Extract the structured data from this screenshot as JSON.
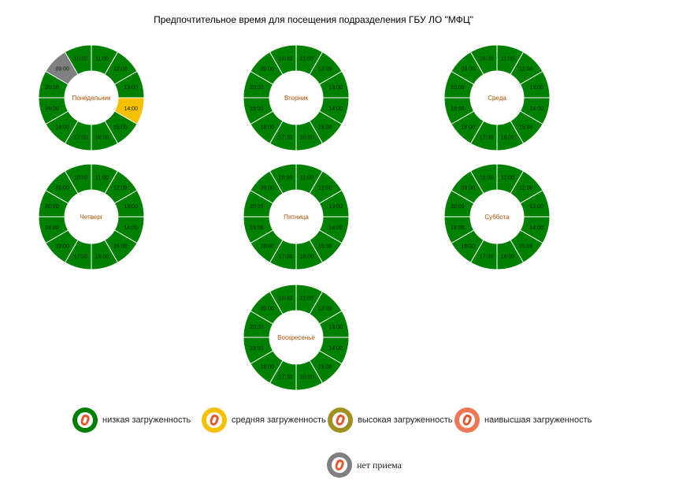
{
  "title": "Предпочтительное время для посещения подразделения ГБУ ЛО \"МФЦ\"",
  "colors": {
    "low": "#008000",
    "medium": "#f5c000",
    "high": "#a09020",
    "highest": "#ee7755",
    "none": "#808080",
    "center_label": "#b05000",
    "slot_text": "#002200"
  },
  "days": [
    {
      "name": "Понедельник",
      "slots": [
        {
          "time": "11:00",
          "load": "low"
        },
        {
          "time": "12:00",
          "load": "low"
        },
        {
          "time": "13:00",
          "load": "low"
        },
        {
          "time": "14:00",
          "load": "medium"
        },
        {
          "time": "15:00",
          "load": "low"
        },
        {
          "time": "16:00",
          "load": "low"
        },
        {
          "time": "17:00",
          "load": "low"
        },
        {
          "time": "18:00",
          "load": "low"
        },
        {
          "time": "19:00",
          "load": "low"
        },
        {
          "time": "20:00",
          "load": "low"
        },
        {
          "time": "09:00",
          "load": "none"
        },
        {
          "time": "10:00",
          "load": "low"
        }
      ]
    },
    {
      "name": "Вторник",
      "slots": [
        {
          "time": "11:00",
          "load": "low"
        },
        {
          "time": "12:00",
          "load": "low"
        },
        {
          "time": "13:00",
          "load": "low"
        },
        {
          "time": "14:00",
          "load": "low"
        },
        {
          "time": "15:00",
          "load": "low"
        },
        {
          "time": "16:00",
          "load": "low"
        },
        {
          "time": "17:00",
          "load": "low"
        },
        {
          "time": "18:00",
          "load": "low"
        },
        {
          "time": "19:00",
          "load": "low"
        },
        {
          "time": "20:00",
          "load": "low"
        },
        {
          "time": "09:00",
          "load": "low"
        },
        {
          "time": "10:00",
          "load": "low"
        }
      ]
    },
    {
      "name": "Среда",
      "slots": [
        {
          "time": "11:00",
          "load": "low"
        },
        {
          "time": "12:00",
          "load": "low"
        },
        {
          "time": "13:00",
          "load": "low"
        },
        {
          "time": "14:00",
          "load": "low"
        },
        {
          "time": "15:00",
          "load": "low"
        },
        {
          "time": "16:00",
          "load": "low"
        },
        {
          "time": "17:00",
          "load": "low"
        },
        {
          "time": "18:00",
          "load": "low"
        },
        {
          "time": "19:00",
          "load": "low"
        },
        {
          "time": "20:00",
          "load": "low"
        },
        {
          "time": "09:00",
          "load": "low"
        },
        {
          "time": "10:00",
          "load": "low"
        }
      ]
    },
    {
      "name": "Четверг",
      "slots": [
        {
          "time": "11:00",
          "load": "low"
        },
        {
          "time": "12:00",
          "load": "low"
        },
        {
          "time": "13:00",
          "load": "low"
        },
        {
          "time": "14:00",
          "load": "low"
        },
        {
          "time": "15:00",
          "load": "low"
        },
        {
          "time": "16:00",
          "load": "low"
        },
        {
          "time": "17:00",
          "load": "low"
        },
        {
          "time": "18:00",
          "load": "low"
        },
        {
          "time": "19:00",
          "load": "low"
        },
        {
          "time": "20:00",
          "load": "low"
        },
        {
          "time": "09:00",
          "load": "low"
        },
        {
          "time": "10:00",
          "load": "low"
        }
      ]
    },
    {
      "name": "Пятница",
      "slots": [
        {
          "time": "11:00",
          "load": "low"
        },
        {
          "time": "12:00",
          "load": "low"
        },
        {
          "time": "13:00",
          "load": "low"
        },
        {
          "time": "14:00",
          "load": "low"
        },
        {
          "time": "15:00",
          "load": "low"
        },
        {
          "time": "16:00",
          "load": "low"
        },
        {
          "time": "17:00",
          "load": "low"
        },
        {
          "time": "18:00",
          "load": "low"
        },
        {
          "time": "19:00",
          "load": "low"
        },
        {
          "time": "20:00",
          "load": "low"
        },
        {
          "time": "09:00",
          "load": "low"
        },
        {
          "time": "10:00",
          "load": "low"
        }
      ]
    },
    {
      "name": "Суббота",
      "slots": [
        {
          "time": "11:00",
          "load": "low"
        },
        {
          "time": "12:00",
          "load": "low"
        },
        {
          "time": "13:00",
          "load": "low"
        },
        {
          "time": "14:00",
          "load": "low"
        },
        {
          "time": "15:00",
          "load": "low"
        },
        {
          "time": "16:00",
          "load": "low"
        },
        {
          "time": "17:00",
          "load": "low"
        },
        {
          "time": "18:00",
          "load": "low"
        },
        {
          "time": "19:00",
          "load": "low"
        },
        {
          "time": "20:00",
          "load": "low"
        },
        {
          "time": "09:00",
          "load": "low"
        },
        {
          "time": "10:00",
          "load": "low"
        }
      ]
    },
    {
      "name": "Воскресенье",
      "slots": [
        {
          "time": "11:00",
          "load": "low"
        },
        {
          "time": "12:00",
          "load": "low"
        },
        {
          "time": "13:00",
          "load": "low"
        },
        {
          "time": "14:00",
          "load": "low"
        },
        {
          "time": "15:00",
          "load": "low"
        },
        {
          "time": "16:00",
          "load": "low"
        },
        {
          "time": "17:00",
          "load": "low"
        },
        {
          "time": "18:00",
          "load": "low"
        },
        {
          "time": "19:00",
          "load": "low"
        },
        {
          "time": "20:00",
          "load": "low"
        },
        {
          "time": "09:00",
          "load": "low"
        },
        {
          "time": "10:00",
          "load": "low"
        }
      ]
    }
  ],
  "legend": [
    {
      "key": "low",
      "label": "низкая загруженность"
    },
    {
      "key": "medium",
      "label": "средняя загруженность"
    },
    {
      "key": "high",
      "label": "высокая загруженность"
    },
    {
      "key": "highest",
      "label": "наивысшая загруженность"
    },
    {
      "key": "none",
      "label": "нет приема"
    }
  ]
}
